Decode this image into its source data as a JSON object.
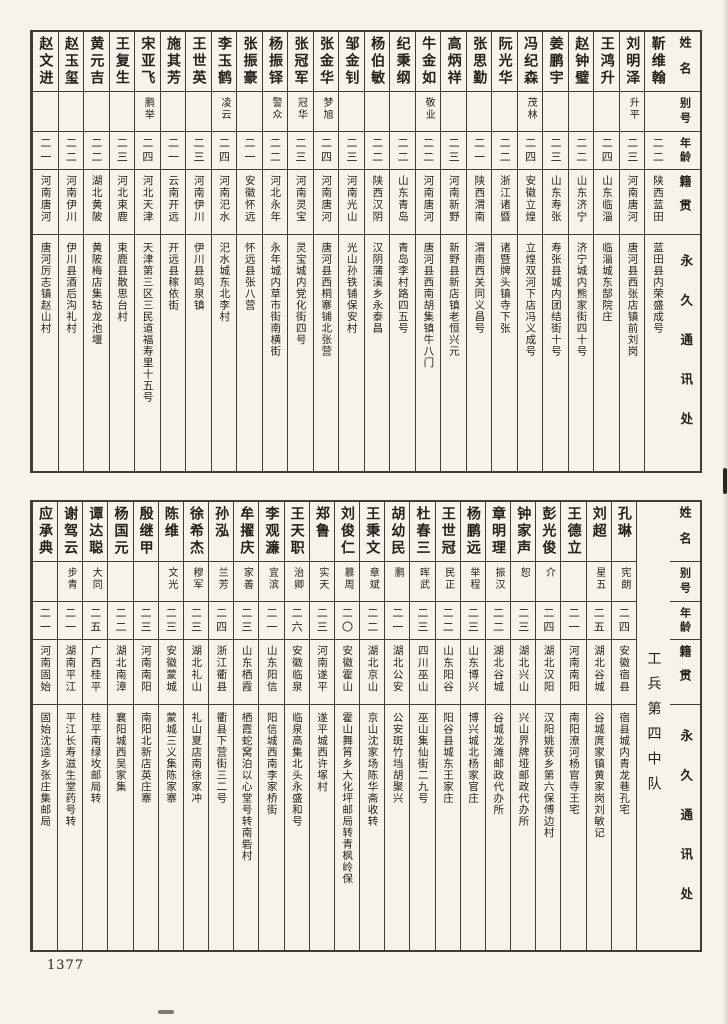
{
  "page": {
    "number": "1377"
  },
  "column_headers": {
    "name": "姓名",
    "alias": "别号",
    "age": "年龄",
    "native_place": "籍贯",
    "address": "永久通讯处"
  },
  "tables": [
    {
      "unit": "",
      "persons_right_to_left": [
        {
          "name": "靳维翰",
          "alias": "",
          "age": "二二",
          "native": "陕西蓝田",
          "address": "蓝田县内荣盛成号"
        },
        {
          "name": "刘明泽",
          "alias": "升平",
          "age": "二三",
          "native": "河南唐河",
          "address": "唐河县西张店镇前刘岗"
        },
        {
          "name": "王鸿升",
          "alias": "",
          "age": "二四",
          "native": "山东临淄",
          "address": "临淄城东郜院庄"
        },
        {
          "name": "赵钟璧",
          "alias": "",
          "age": "二二",
          "native": "山东济宁",
          "address": "济宁城内熊家街四十号"
        },
        {
          "name": "姜鹏宇",
          "alias": "",
          "age": "二三",
          "native": "山东寿张",
          "address": "寿张县城内团结街十号"
        },
        {
          "name": "冯纪森",
          "alias": "茂林",
          "age": "二四",
          "native": "安徽立煌",
          "address": "立煌双河下店冯义成号"
        },
        {
          "name": "阮光华",
          "alias": "",
          "age": "二二",
          "native": "浙江诸暨",
          "address": "诸暨牌头镇寺下张"
        },
        {
          "name": "张思勤",
          "alias": "",
          "age": "二一",
          "native": "陕西渭南",
          "address": "渭南西关同义昌号"
        },
        {
          "name": "高炳祥",
          "alias": "",
          "age": "二三",
          "native": "河南新野",
          "address": "新野县新店镇老恒兴元"
        },
        {
          "name": "牛金如",
          "alias": "敬业",
          "age": "二二",
          "native": "河南唐河",
          "address": "唐河县西南胡集镇牛八门"
        },
        {
          "name": "纪秉纲",
          "alias": "",
          "age": "二二",
          "native": "山东青岛",
          "address": "青岛李村路四五号"
        },
        {
          "name": "杨伯敏",
          "alias": "",
          "age": "二二",
          "native": "陕西汉阴",
          "address": "汉阴蒲溪乡永泰昌"
        },
        {
          "name": "邹金钊",
          "alias": "",
          "age": "二三",
          "native": "河南光山",
          "address": "光山孙铁铺保安村"
        },
        {
          "name": "张金华",
          "alias": "梦旭",
          "age": "二四",
          "native": "河南唐河",
          "address": "唐河县西桐寨铺北张营"
        },
        {
          "name": "张冠军",
          "alias": "冠华",
          "age": "二三",
          "native": "河南灵宝",
          "address": "灵宝城内党化街四号"
        },
        {
          "name": "杨振铎",
          "alias": "警众",
          "age": "二二",
          "native": "河北永年",
          "address": "永年城内草市街南横街"
        },
        {
          "name": "张振豪",
          "alias": "",
          "age": "二一",
          "native": "安徽怀远",
          "address": "怀远县张八营"
        },
        {
          "name": "李玉鹤",
          "alias": "凌云",
          "age": "二四",
          "native": "河南汜水",
          "address": "汜水城东北李村"
        },
        {
          "name": "王世英",
          "alias": "",
          "age": "二三",
          "native": "河南伊川",
          "address": "伊川县鸣泉镇"
        },
        {
          "name": "施其芳",
          "alias": "",
          "age": "二一",
          "native": "云南开远",
          "address": "开远县稼依街"
        },
        {
          "name": "宋亚飞",
          "alias": "鹏举",
          "age": "二四",
          "native": "河北天津",
          "address": "天津第三区三民道福寿里十五号"
        },
        {
          "name": "王复生",
          "alias": "",
          "age": "二三",
          "native": "河北束鹿",
          "address": "束鹿县散思台村"
        },
        {
          "name": "黄元吉",
          "alias": "",
          "age": "二二",
          "native": "湖北黄陂",
          "address": "黄陂梅店集轱龙池堰"
        },
        {
          "name": "赵玉玺",
          "alias": "",
          "age": "二二",
          "native": "河南伊川",
          "address": "伊川县酒后沟礼村"
        },
        {
          "name": "赵文进",
          "alias": "",
          "age": "二一",
          "native": "河南唐河",
          "address": "唐河厉志镇赵山村"
        }
      ]
    },
    {
      "unit": "工兵第四中队",
      "persons_right_to_left": [
        {
          "name": "孔琳",
          "alias": "宪朗",
          "age": "二四",
          "native": "安徽宿县",
          "address": "宿县城内青龙巷孔宅"
        },
        {
          "name": "刘超",
          "alias": "星五",
          "age": "二五",
          "native": "湖北谷城",
          "address": "谷城庹家镇黄家岗刘敏记"
        },
        {
          "name": "王德立",
          "alias": "",
          "age": "二一",
          "native": "河南南阳",
          "address": "南阳潦河杨官寺王宅"
        },
        {
          "name": "彭光俊",
          "alias": "介",
          "age": "二四",
          "native": "湖北汉阳",
          "address": "汉阳姚获乡第六保傅边村"
        },
        {
          "name": "钟家声",
          "alias": "恕",
          "age": "二三",
          "native": "湖北兴山",
          "address": "兴山界牌垭邮政代办所"
        },
        {
          "name": "章明理",
          "alias": "振汉",
          "age": "二二",
          "native": "湖北谷城",
          "address": "谷城龙滩邮政代办所"
        },
        {
          "name": "杨鹏远",
          "alias": "举程",
          "age": "二三",
          "native": "山东博兴",
          "address": "博兴城北杨家官庄"
        },
        {
          "name": "王世冠",
          "alias": "民正",
          "age": "二二",
          "native": "山东阳谷",
          "address": "阳谷县城东王家庄"
        },
        {
          "name": "杜春三",
          "alias": "晖武",
          "age": "二三",
          "native": "四川巫山",
          "address": "巫山集仙街二九号"
        },
        {
          "name": "胡幼民",
          "alias": "鹏",
          "age": "二一",
          "native": "湖北公安",
          "address": "公安斑竹垱胡聚兴"
        },
        {
          "name": "王秉文",
          "alias": "章斌",
          "age": "二二",
          "native": "湖北京山",
          "address": "京山沈家场陈华斋收转"
        },
        {
          "name": "刘俊仁",
          "alias": "慕周",
          "age": "二〇",
          "native": "安徽霍山",
          "address": "霍山舞筲乡大化坪邮局转青枫岭保"
        },
        {
          "name": "郑鲁",
          "alias": "实天",
          "age": "二三",
          "native": "河南遂平",
          "address": "遂平城西许塚村"
        },
        {
          "name": "王天职",
          "alias": "治卿",
          "age": "二六",
          "native": "安徽临泉",
          "address": "临泉高集北头永盛和号"
        },
        {
          "name": "李观濂",
          "alias": "宜滨",
          "age": "二一",
          "native": "山东阳信",
          "address": "阳信城西南李家桥街"
        },
        {
          "name": "牟擢庆",
          "alias": "家善",
          "age": "二三",
          "native": "山东栖霞",
          "address": "栖霞蛇窝泊以心堂号转南砦村"
        },
        {
          "name": "孙泓",
          "alias": "兰芳",
          "age": "二四",
          "native": "浙江衢县",
          "address": "衢县下营街三二号"
        },
        {
          "name": "徐希杰",
          "alias": "穆军",
          "age": "二三",
          "native": "湖北礼山",
          "address": "礼山夏店南徐家冲"
        },
        {
          "name": "陈维",
          "alias": "文光",
          "age": "二三",
          "native": "安徽蒙城",
          "address": "蒙城三义集陈家寨"
        },
        {
          "name": "殷继甲",
          "alias": "",
          "age": "二三",
          "native": "河南南阳",
          "address": "南阳北新店英庄寨"
        },
        {
          "name": "杨国元",
          "alias": "",
          "age": "二二",
          "native": "湖北南漳",
          "address": "襄阳城西吴家集"
        },
        {
          "name": "谭达聪",
          "alias": "大同",
          "age": "二五",
          "native": "广西桂平",
          "address": "桂平南绿坆邮局转"
        },
        {
          "name": "谢驾云",
          "alias": "步青",
          "age": "二一",
          "native": "湖南平江",
          "address": "平江长寿滋生堂药号转"
        },
        {
          "name": "应承典",
          "alias": "",
          "age": "二一",
          "native": "河南固始",
          "address": "固始沈逵乡张庄集邮局"
        }
      ]
    }
  ]
}
